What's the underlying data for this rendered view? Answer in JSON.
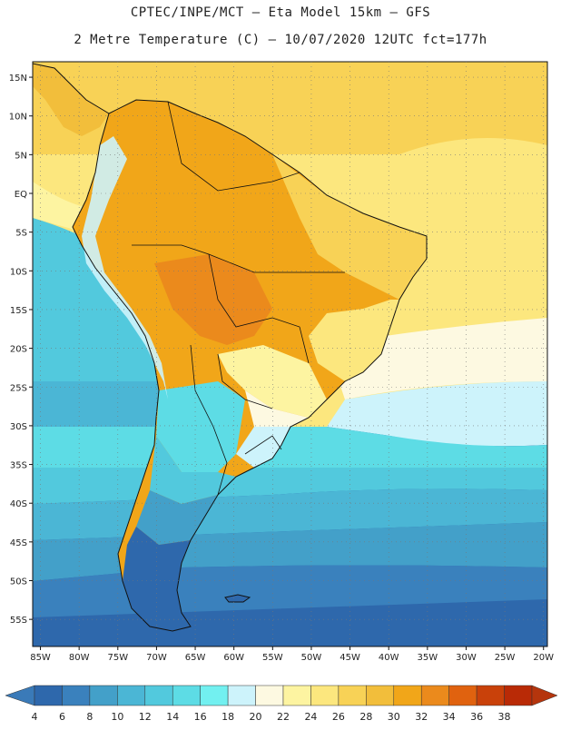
{
  "header": {
    "line1": "CPTEC/INPE/MCT –  Eta Model 15km – GFS",
    "line2": "2 Metre Temperature (C) – 10/07/2020 12UTC fct=177h"
  },
  "axes": {
    "lat_labels": [
      "15N",
      "10N",
      "5N",
      "EQ",
      "5S",
      "10S",
      "15S",
      "20S",
      "25S",
      "30S",
      "35S",
      "40S",
      "45S",
      "50S",
      "55S"
    ],
    "lat_values": [
      15,
      10,
      5,
      0,
      -5,
      -10,
      -15,
      -20,
      -25,
      -30,
      -35,
      -40,
      -45,
      -50,
      -55
    ],
    "lon_labels": [
      "85W",
      "80W",
      "75W",
      "70W",
      "65W",
      "60W",
      "55W",
      "50W",
      "45W",
      "40W",
      "35W",
      "30W",
      "25W",
      "20W"
    ],
    "lon_values": [
      -85,
      -80,
      -75,
      -70,
      -65,
      -60,
      -55,
      -50,
      -45,
      -40,
      -35,
      -30,
      -25,
      -20
    ]
  },
  "colorbar": {
    "labels": [
      "4",
      "6",
      "8",
      "10",
      "12",
      "14",
      "16",
      "18",
      "20",
      "22",
      "24",
      "26",
      "28",
      "30",
      "32",
      "34",
      "36",
      "38"
    ],
    "colors": [
      "#2e68ac",
      "#3a81bd",
      "#43a0c9",
      "#4bb6d5",
      "#52c9dd",
      "#5ddce5",
      "#72f0f0",
      "#cdf3fb",
      "#fdf9e1",
      "#fdf4a1",
      "#fce77e",
      "#f8d256",
      "#f2be3b",
      "#f1a619",
      "#eb8a1c",
      "#e0620f",
      "#c9410a",
      "#b92a06"
    ],
    "low_color": "#3a7ab8",
    "high_color": "#b5350d"
  }
}
